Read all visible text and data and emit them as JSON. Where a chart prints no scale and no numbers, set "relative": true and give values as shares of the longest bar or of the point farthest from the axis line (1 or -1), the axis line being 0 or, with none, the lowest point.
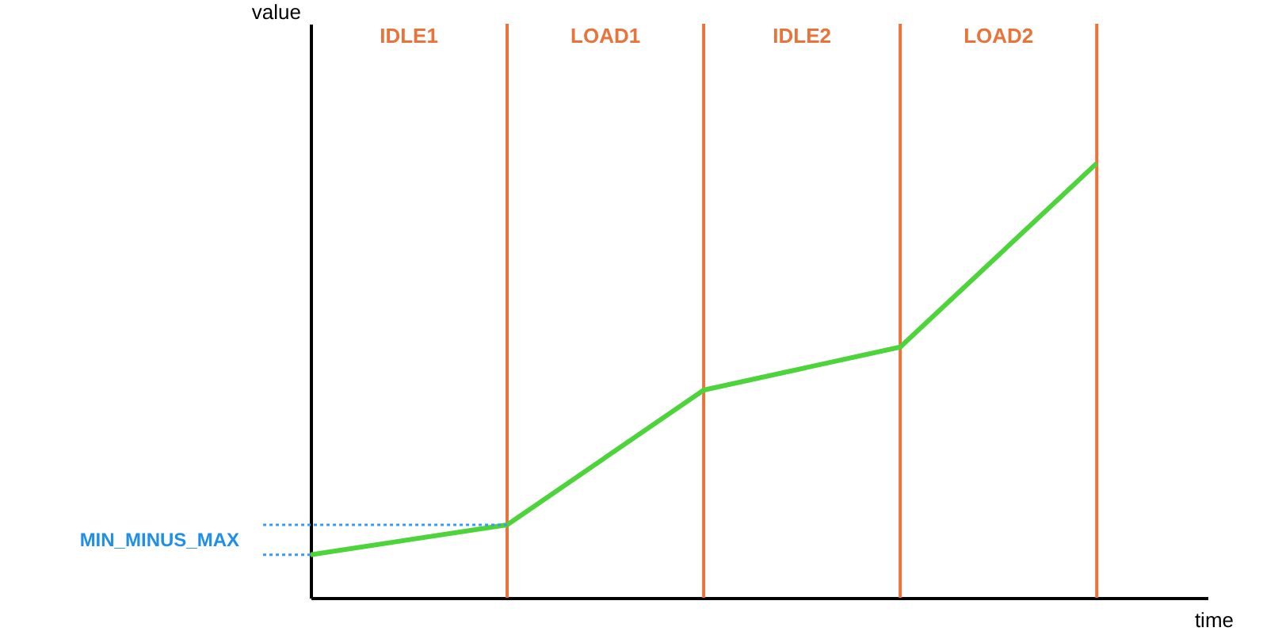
{
  "chart_data": {
    "type": "line",
    "relative": true,
    "xlabel": "time",
    "categories": [
      null,
      null,
      null,
      null,
      null
    ],
    "series": [
      {
        "color": "#4cd43a",
        "values": [
          0.099,
          0.168,
          0.478,
          0.577,
          1.0
        ]
      }
    ],
    "annotations": [
      "value",
      "IDLE1",
      "LOAD1",
      "IDLE2",
      "LOAD2",
      "MIN_MINUS_MAX"
    ],
    "grid": "x",
    "tick_labels": false
  }
}
